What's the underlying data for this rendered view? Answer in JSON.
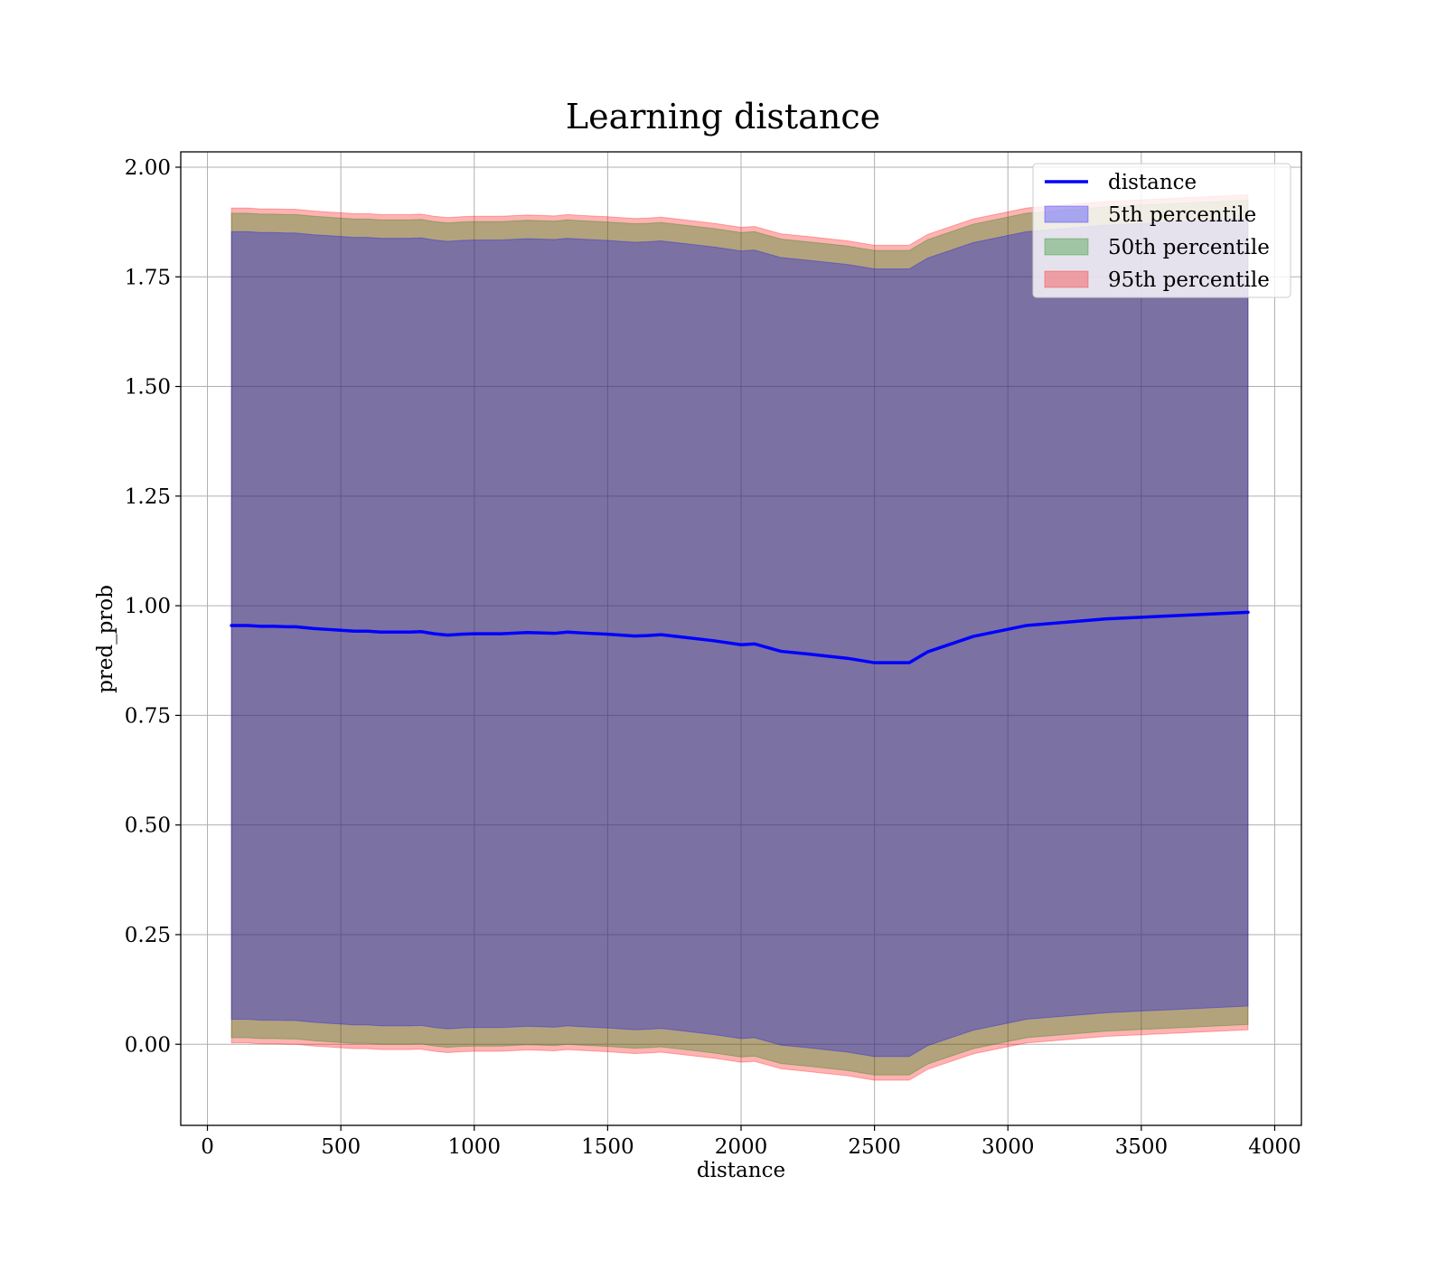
{
  "chart_data": {
    "type": "line",
    "title": "Learning distance",
    "xlabel": "distance",
    "ylabel": "pred_prob",
    "xlim": [
      -100,
      4100
    ],
    "ylim": [
      -0.185,
      2.035
    ],
    "xticks": [
      0,
      500,
      1000,
      1500,
      2000,
      2500,
      3000,
      3500,
      4000
    ],
    "xtick_labels": [
      "0",
      "500",
      "1000",
      "1500",
      "2000",
      "2500",
      "3000",
      "3500",
      "4000"
    ],
    "yticks": [
      0.0,
      0.25,
      0.5,
      0.75,
      1.0,
      1.25,
      1.5,
      1.75,
      2.0
    ],
    "ytick_labels": [
      "0.00",
      "0.25",
      "0.50",
      "0.75",
      "1.00",
      "1.25",
      "1.50",
      "1.75",
      "2.00"
    ],
    "grid": true,
    "legend_position": "top-right",
    "legend": [
      {
        "label": "distance",
        "kind": "line",
        "color": "#0000ff"
      },
      {
        "label": "5th percentile",
        "kind": "band",
        "color": "#0000ff"
      },
      {
        "label": "50th percentile",
        "kind": "band",
        "color": "#008000"
      },
      {
        "label": "95th percentile",
        "kind": "band",
        "color": "#ff0000"
      }
    ],
    "x": [
      90,
      150,
      200,
      250,
      300,
      330,
      400,
      450,
      500,
      550,
      600,
      650,
      700,
      760,
      800,
      850,
      900,
      950,
      1000,
      1100,
      1200,
      1300,
      1350,
      1400,
      1500,
      1600,
      1650,
      1700,
      1800,
      1900,
      2000,
      2050,
      2150,
      2250,
      2400,
      2500,
      2630,
      2700,
      2870,
      3070,
      3370,
      3900
    ],
    "series": [
      {
        "name": "distance",
        "color": "#0000ff",
        "values": [
          0.955,
          0.955,
          0.953,
          0.953,
          0.952,
          0.952,
          0.948,
          0.946,
          0.944,
          0.942,
          0.942,
          0.94,
          0.94,
          0.94,
          0.941,
          0.936,
          0.933,
          0.935,
          0.936,
          0.936,
          0.939,
          0.937,
          0.94,
          0.938,
          0.935,
          0.931,
          0.932,
          0.934,
          0.927,
          0.92,
          0.911,
          0.913,
          0.896,
          0.89,
          0.88,
          0.87,
          0.87,
          0.895,
          0.93,
          0.955,
          0.97,
          0.985
        ]
      }
    ],
    "bands": [
      {
        "name": "95th percentile",
        "color": "#ff0000",
        "opacity": 0.3,
        "upper": [
          1.907,
          1.907,
          1.905,
          1.905,
          1.904,
          1.904,
          1.9,
          1.898,
          1.896,
          1.894,
          1.894,
          1.892,
          1.892,
          1.892,
          1.893,
          1.888,
          1.885,
          1.887,
          1.888,
          1.888,
          1.891,
          1.889,
          1.892,
          1.89,
          1.887,
          1.883,
          1.884,
          1.886,
          1.879,
          1.872,
          1.863,
          1.865,
          1.848,
          1.842,
          1.832,
          1.822,
          1.822,
          1.847,
          1.882,
          1.907,
          1.922,
          1.937
        ],
        "lower": [
          0.003,
          0.003,
          0.001,
          0.001,
          0.0,
          0.0,
          -0.004,
          -0.006,
          -0.008,
          -0.01,
          -0.01,
          -0.012,
          -0.012,
          -0.012,
          -0.011,
          -0.016,
          -0.019,
          -0.017,
          -0.016,
          -0.016,
          -0.013,
          -0.015,
          -0.012,
          -0.014,
          -0.017,
          -0.021,
          -0.02,
          -0.018,
          -0.025,
          -0.032,
          -0.041,
          -0.039,
          -0.056,
          -0.062,
          -0.072,
          -0.082,
          -0.082,
          -0.057,
          -0.022,
          0.003,
          0.018,
          0.033
        ]
      },
      {
        "name": "50th percentile",
        "color": "#008000",
        "opacity": 0.3,
        "upper": [
          1.895,
          1.895,
          1.893,
          1.893,
          1.892,
          1.892,
          1.888,
          1.886,
          1.884,
          1.882,
          1.882,
          1.88,
          1.88,
          1.88,
          1.881,
          1.876,
          1.873,
          1.875,
          1.876,
          1.876,
          1.879,
          1.877,
          1.88,
          1.878,
          1.875,
          1.871,
          1.872,
          1.874,
          1.867,
          1.86,
          1.851,
          1.853,
          1.836,
          1.83,
          1.82,
          1.81,
          1.81,
          1.835,
          1.87,
          1.895,
          1.91,
          1.925
        ],
        "lower": [
          0.015,
          0.015,
          0.013,
          0.013,
          0.012,
          0.012,
          0.008,
          0.006,
          0.004,
          0.002,
          0.002,
          0.0,
          0.0,
          0.0,
          0.001,
          -0.004,
          -0.007,
          -0.005,
          -0.004,
          -0.004,
          -0.001,
          -0.003,
          0.0,
          -0.002,
          -0.005,
          -0.009,
          -0.008,
          -0.006,
          -0.013,
          -0.02,
          -0.029,
          -0.027,
          -0.044,
          -0.05,
          -0.06,
          -0.07,
          -0.07,
          -0.045,
          -0.01,
          0.015,
          0.03,
          0.045
        ]
      },
      {
        "name": "5th percentile",
        "color": "#0000ff",
        "opacity": 0.3,
        "upper": [
          1.853,
          1.853,
          1.851,
          1.851,
          1.85,
          1.85,
          1.846,
          1.844,
          1.842,
          1.84,
          1.84,
          1.838,
          1.838,
          1.838,
          1.839,
          1.834,
          1.831,
          1.833,
          1.834,
          1.834,
          1.837,
          1.835,
          1.838,
          1.836,
          1.833,
          1.829,
          1.83,
          1.832,
          1.825,
          1.818,
          1.809,
          1.811,
          1.794,
          1.788,
          1.778,
          1.768,
          1.768,
          1.793,
          1.828,
          1.853,
          1.868,
          1.883
        ],
        "lower": [
          0.057,
          0.057,
          0.055,
          0.055,
          0.054,
          0.054,
          0.05,
          0.048,
          0.046,
          0.044,
          0.044,
          0.042,
          0.042,
          0.042,
          0.043,
          0.038,
          0.035,
          0.037,
          0.038,
          0.038,
          0.041,
          0.039,
          0.042,
          0.04,
          0.037,
          0.033,
          0.034,
          0.036,
          0.029,
          0.022,
          0.013,
          0.015,
          -0.002,
          -0.008,
          -0.018,
          -0.028,
          -0.028,
          -0.003,
          0.032,
          0.057,
          0.072,
          0.087
        ]
      }
    ]
  }
}
